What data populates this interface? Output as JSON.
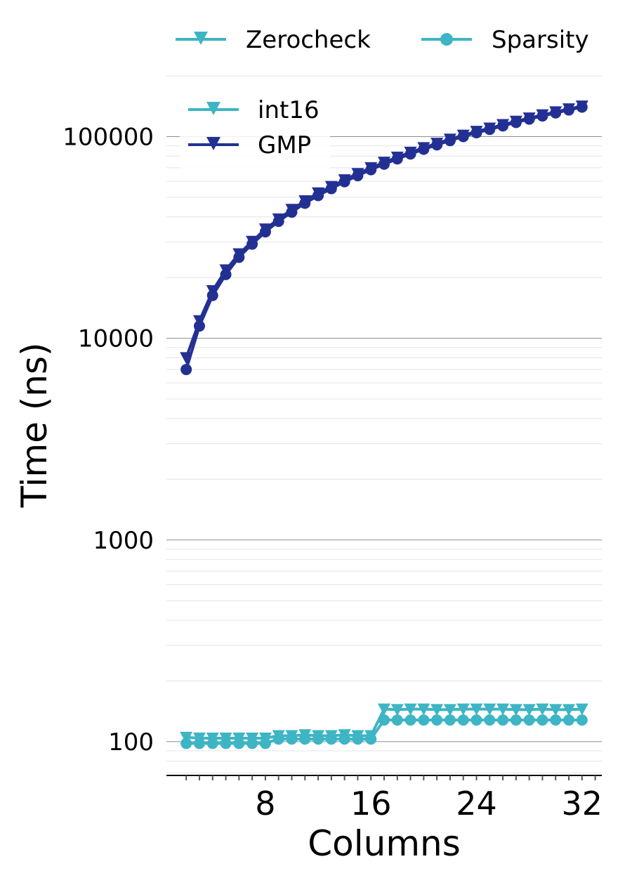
{
  "chart_data": {
    "type": "line",
    "xlabel": "Columns",
    "ylabel": "Time (ns)",
    "x_ticks": [
      8,
      16,
      24,
      32
    ],
    "y_ticks": [
      100,
      1000,
      10000,
      100000
    ],
    "y_tick_labels": [
      "100",
      "1000",
      "10000",
      "100000"
    ],
    "xlim": [
      0.5,
      33.5
    ],
    "ylim": [
      68,
      200000
    ],
    "y_scale": "log",
    "grid": true,
    "colors": {
      "int16": "#3db5c4",
      "GMP": "#233093"
    },
    "legend_operation": {
      "placement": "top, above plot",
      "entries": [
        {
          "label": "Zerocheck",
          "marker": "triangle-down"
        },
        {
          "label": "Sparsity",
          "marker": "circle"
        }
      ]
    },
    "legend_type": {
      "placement": "upper-left",
      "entries": [
        {
          "label": "int16",
          "color": "#3db5c4"
        },
        {
          "label": "GMP",
          "color": "#233093"
        }
      ]
    },
    "x": [
      2,
      3,
      4,
      5,
      6,
      7,
      8,
      9,
      10,
      11,
      12,
      13,
      14,
      15,
      16,
      17,
      18,
      19,
      20,
      21,
      22,
      23,
      24,
      25,
      26,
      27,
      28,
      29,
      30,
      31,
      32
    ],
    "series": [
      {
        "name": "Zerocheck",
        "type_key": "int16",
        "marker": "triangle-down",
        "values": [
          105,
          104,
          104,
          104,
          104,
          104,
          104,
          107,
          107,
          108,
          107,
          107,
          108,
          107,
          107,
          145,
          144,
          145,
          145,
          144,
          144,
          145,
          145,
          145,
          145,
          144,
          144,
          145,
          144,
          144,
          145
        ]
      },
      {
        "name": "Sparsity",
        "type_key": "int16",
        "marker": "circle",
        "values": [
          98,
          98,
          98,
          98,
          98,
          98,
          98,
          103,
          103,
          103,
          103,
          103,
          103,
          103,
          103,
          128,
          128,
          128,
          128,
          128,
          128,
          128,
          128,
          128,
          128,
          128,
          128,
          128,
          128,
          128,
          128
        ]
      },
      {
        "name": "Zerocheck",
        "type_key": "GMP",
        "marker": "triangle-down",
        "values": [
          8000,
          12200,
          17200,
          21800,
          26200,
          30200,
          34800,
          39000,
          43500,
          48000,
          52500,
          56500,
          61000,
          65500,
          70000,
          74500,
          79000,
          83500,
          88000,
          92500,
          97000,
          101500,
          106000,
          110000,
          114500,
          119000,
          123500,
          128000,
          132500,
          137000,
          141500
        ]
      },
      {
        "name": "Sparsity",
        "type_key": "GMP",
        "marker": "circle",
        "values": [
          7000,
          11500,
          16300,
          20700,
          25200,
          29300,
          33700,
          38000,
          42200,
          46700,
          51000,
          55200,
          59700,
          64000,
          68500,
          73000,
          77500,
          82000,
          86500,
          91000,
          95500,
          100000,
          104500,
          108500,
          113000,
          117500,
          122000,
          126500,
          131000,
          135500,
          140000
        ]
      }
    ]
  }
}
